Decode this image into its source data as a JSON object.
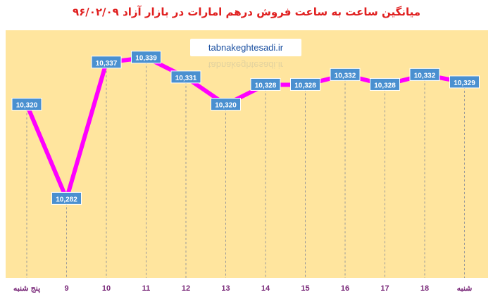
{
  "chart_data": {
    "type": "line",
    "title": "میانگین ساعت به ساعت فروش درهم امارات در بازار آزاد ۹۶/۰۲/۰۹",
    "xlabel": "",
    "ylabel": "",
    "watermark": "tabnakeghtesadi.ir",
    "categories": [
      "پنج شنبه",
      "9",
      "10",
      "11",
      "12",
      "13",
      "14",
      "15",
      "16",
      "17",
      "18",
      "شنبه"
    ],
    "series": [
      {
        "values": [
          10320,
          10282,
          10337,
          10339,
          10331,
          10320,
          10328,
          10328,
          10332,
          10328,
          10332,
          10329
        ],
        "labels": [
          "10,320",
          "10,282",
          "10,337",
          "10,339",
          "10,331",
          "10,320",
          "10,328",
          "10,328",
          "10,332",
          "10,328",
          "10,332",
          "10,329"
        ]
      }
    ],
    "ylim": [
      10250,
      10350
    ],
    "grid": "vertical-dashed",
    "legend": "none",
    "colors": {
      "line": "#ff00ff",
      "plot_background": "#ffe59e",
      "label_box": "#4a90d0",
      "title": "#e02020",
      "x_label": "#7a2a7a"
    }
  }
}
